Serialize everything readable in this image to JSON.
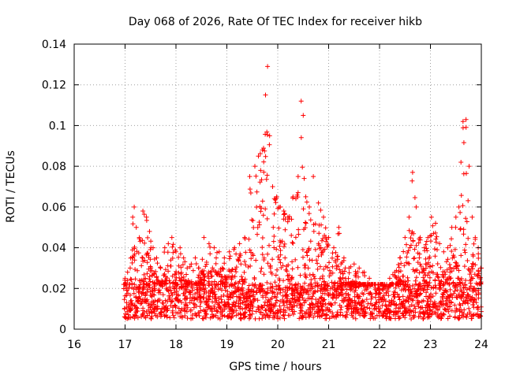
{
  "chart_data": {
    "type": "scatter",
    "title": "Day 068 of 2026, Rate Of TEC Index for receiver hikb",
    "xlabel": "GPS time / hours",
    "ylabel": "ROTI / TECUs",
    "xlim": [
      16,
      24
    ],
    "ylim": [
      0,
      0.14
    ],
    "xticks": [
      16,
      17,
      18,
      19,
      20,
      21,
      22,
      23,
      24
    ],
    "yticks": [
      0,
      0.02,
      0.04,
      0.06,
      0.08,
      0.1,
      0.12,
      0.14
    ],
    "xtick_labels": [
      "16",
      "17",
      "18",
      "19",
      "20",
      "21",
      "22",
      "23",
      "24"
    ],
    "ytick_labels": [
      "0",
      "0.02",
      "0.04",
      "0.06",
      "0.08",
      "0.1",
      "0.12",
      "0.14"
    ],
    "grid": true,
    "marker": "+",
    "color": "#ff0000",
    "data_window_hours": [
      16.97,
      24.0
    ],
    "series": [
      {
        "name": "ROTI",
        "x": [
          17.0,
          17.05,
          17.1,
          17.15,
          17.18,
          17.22,
          17.28,
          17.35,
          17.42,
          17.48,
          17.55,
          17.62,
          17.7,
          17.78,
          17.85,
          17.92,
          18.0,
          18.08,
          18.15,
          18.22,
          18.3,
          18.38,
          18.45,
          18.55,
          18.65,
          18.75,
          18.85,
          18.95,
          19.05,
          19.15,
          19.25,
          19.35,
          19.45,
          19.55,
          19.62,
          19.7,
          19.76,
          19.8,
          19.84,
          19.9,
          19.98,
          20.05,
          20.12,
          20.2,
          20.3,
          20.4,
          20.46,
          20.5,
          20.55,
          20.62,
          20.7,
          20.8,
          20.9,
          21.0,
          21.1,
          21.2,
          21.3,
          21.4,
          21.5,
          21.6,
          21.7,
          21.8,
          21.9,
          22.0,
          22.1,
          22.2,
          22.3,
          22.4,
          22.5,
          22.58,
          22.65,
          22.72,
          22.8,
          22.88,
          22.95,
          23.02,
          23.1,
          23.18,
          23.26,
          23.34,
          23.42,
          23.5,
          23.56,
          23.6,
          23.64,
          23.7,
          23.76,
          23.82,
          23.88,
          23.94,
          24.0
        ],
        "y": [
          0.025,
          0.028,
          0.03,
          0.055,
          0.06,
          0.05,
          0.045,
          0.058,
          0.055,
          0.048,
          0.04,
          0.035,
          0.03,
          0.04,
          0.042,
          0.045,
          0.038,
          0.04,
          0.035,
          0.03,
          0.032,
          0.035,
          0.03,
          0.045,
          0.042,
          0.04,
          0.038,
          0.035,
          0.038,
          0.04,
          0.042,
          0.045,
          0.075,
          0.08,
          0.085,
          0.088,
          0.115,
          0.129,
          0.095,
          0.07,
          0.065,
          0.06,
          0.058,
          0.055,
          0.065,
          0.075,
          0.112,
          0.105,
          0.065,
          0.06,
          0.075,
          0.062,
          0.055,
          0.045,
          0.04,
          0.05,
          0.035,
          0.03,
          0.032,
          0.03,
          0.028,
          0.025,
          0.022,
          0.02,
          0.022,
          0.025,
          0.028,
          0.035,
          0.045,
          0.055,
          0.077,
          0.06,
          0.045,
          0.04,
          0.045,
          0.055,
          0.052,
          0.042,
          0.038,
          0.04,
          0.05,
          0.055,
          0.06,
          0.082,
          0.102,
          0.103,
          0.08,
          0.055,
          0.045,
          0.04,
          0.03
        ],
        "baseline_range": [
          0.005,
          0.022
        ]
      }
    ]
  }
}
